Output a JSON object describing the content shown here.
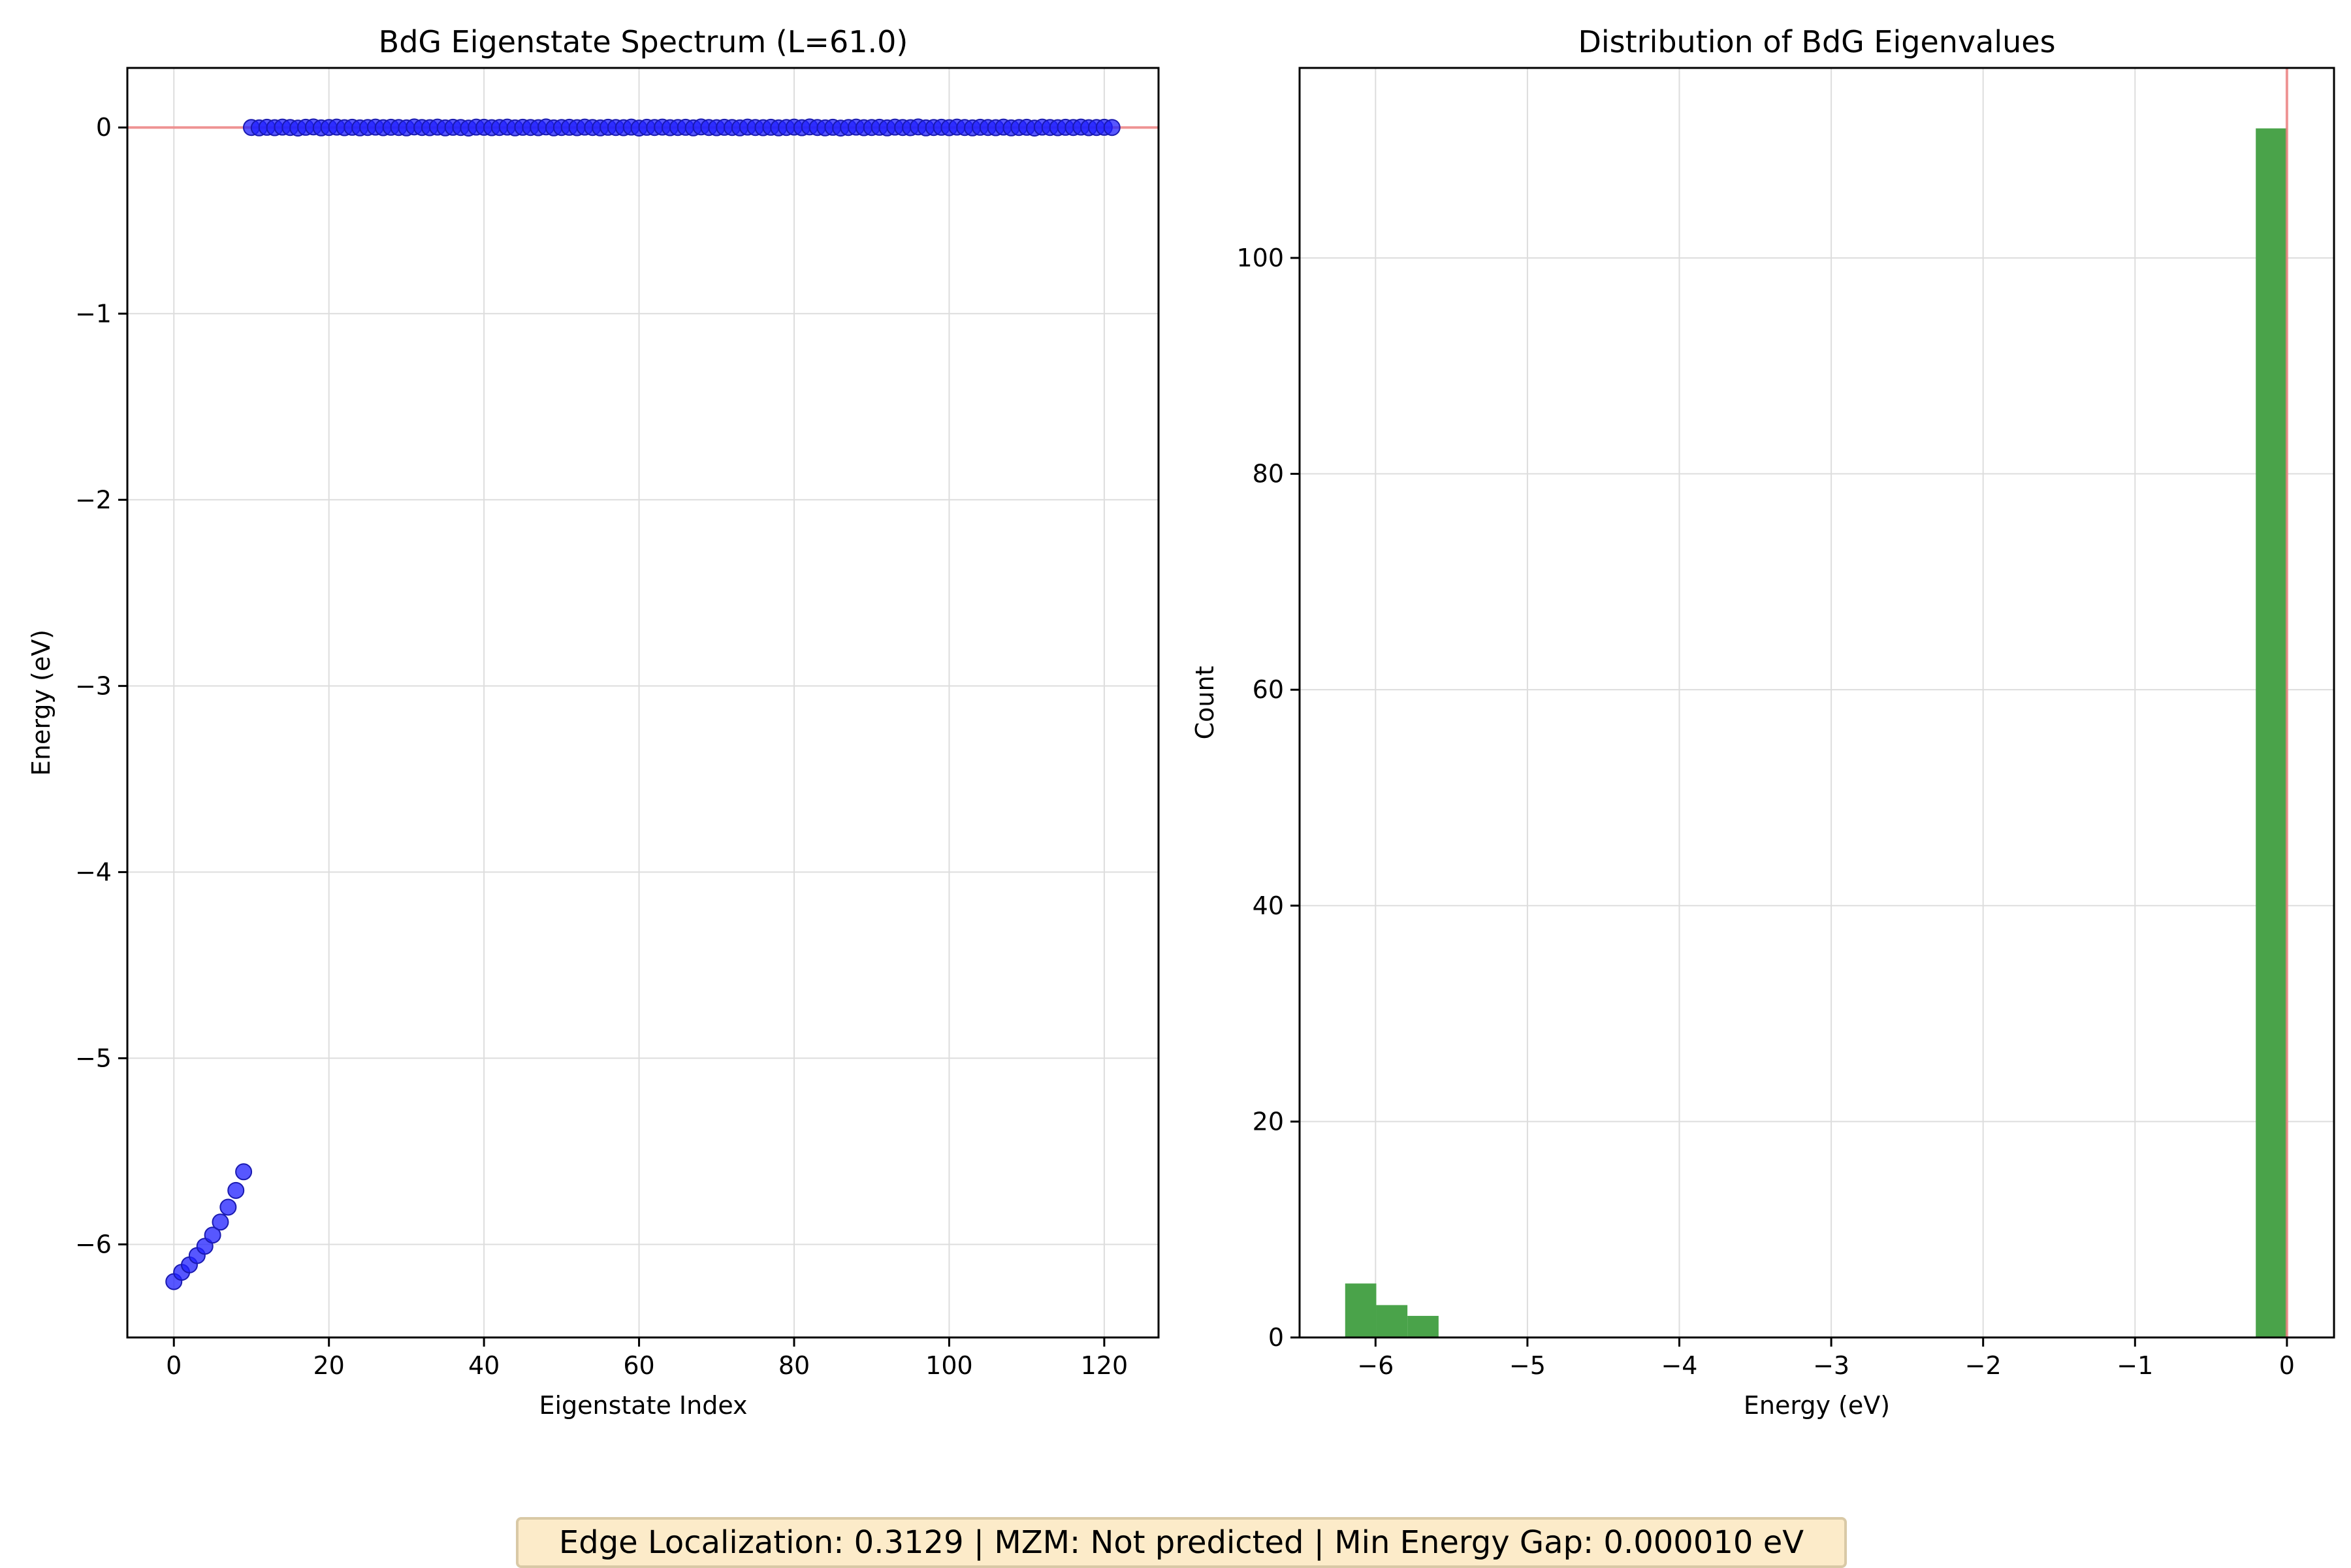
{
  "footer": {
    "text": "Edge Localization: 0.3129 | MZM: Not predicted | Min Energy Gap: 0.000010 eV"
  },
  "colors": {
    "scatter": "#1f1fff",
    "scatter_edge": "#1a1ab0",
    "bars": "#4aa34a",
    "reference_line": "#f08080",
    "grid": "#dddddd",
    "footer_bg": "#fcebc9"
  },
  "chart_data": [
    {
      "type": "scatter",
      "title": "BdG Eigenstate Spectrum (L=61.0)",
      "xlabel": "Eigenstate Index",
      "ylabel": "Energy (eV)",
      "xlim": [
        -6,
        127
      ],
      "ylim": [
        -6.5,
        0.32
      ],
      "xticks": [
        0,
        20,
        40,
        60,
        80,
        100,
        120
      ],
      "xtick_labels": [
        "0",
        "20",
        "40",
        "60",
        "80",
        "100",
        "120"
      ],
      "yticks": [
        0,
        -1,
        -2,
        -3,
        -4,
        -5,
        -6
      ],
      "ytick_labels": [
        "0",
        "−1",
        "−2",
        "−3",
        "−4",
        "−5",
        "−6"
      ],
      "grid": true,
      "reference_line": {
        "orientation": "horizontal",
        "value": 0
      },
      "low_energy_states": {
        "x": [
          0,
          1,
          2,
          3,
          4,
          5,
          6,
          7,
          8,
          9
        ],
        "y": [
          -6.2,
          -6.15,
          -6.11,
          -6.06,
          -6.01,
          -5.95,
          -5.88,
          -5.8,
          -5.71,
          -5.61
        ]
      },
      "near_zero_states": {
        "x_start": 10,
        "x_end": 121,
        "y": [
          0.0,
          -0.002,
          0.001,
          -0.001,
          0.002,
          0.0,
          -0.003,
          0.001,
          0.003,
          -0.002,
          0.0,
          0.002,
          -0.001,
          0.001,
          -0.002,
          0.0,
          0.002,
          -0.001,
          0.001,
          0.0,
          -0.002,
          0.003,
          0.0,
          -0.001,
          0.002,
          -0.002,
          0.001,
          0.0,
          -0.003,
          0.002,
          0.001,
          -0.001,
          0.0,
          0.002,
          -0.002,
          0.001,
          0.0,
          -0.001,
          0.003,
          -0.002,
          0.0,
          0.001,
          -0.001,
          0.002,
          0.0,
          -0.002,
          0.001,
          0.0,
          -0.001,
          0.002,
          -0.003,
          0.001,
          0.0,
          0.002,
          -0.001,
          0.0,
          0.001,
          -0.002,
          0.003,
          0.0,
          -0.001,
          0.001,
          0.0,
          -0.002,
          0.002,
          0.0,
          -0.001,
          0.001,
          -0.002,
          0.0,
          0.002,
          -0.001,
          0.003,
          0.0,
          -0.002,
          0.001,
          -0.003,
          0.0,
          0.002,
          -0.001,
          0.0,
          0.001,
          -0.002,
          0.002,
          0.0,
          -0.001,
          0.003,
          -0.002,
          0.0,
          0.001,
          -0.001,
          0.002,
          0.0,
          -0.002,
          0.001,
          0.0,
          -0.001,
          0.002,
          -0.002,
          0.0,
          0.001,
          -0.003,
          0.002,
          0.0,
          -0.001,
          0.001,
          0.0,
          0.002,
          -0.001,
          0.0,
          0.001,
          0.0
        ]
      }
    },
    {
      "type": "bar",
      "title": "Distribution of BdG Eigenvalues",
      "xlabel": "Energy (eV)",
      "ylabel": "Count",
      "xlim": [
        -6.5,
        0.31
      ],
      "ylim": [
        0,
        117.6
      ],
      "xticks": [
        -6,
        -5,
        -4,
        -3,
        -2,
        -1,
        0
      ],
      "xtick_labels": [
        "−6",
        "−5",
        "−4",
        "−3",
        "−2",
        "−1",
        "0"
      ],
      "yticks": [
        0,
        20,
        40,
        60,
        80,
        100
      ],
      "ytick_labels": [
        "0",
        "20",
        "40",
        "60",
        "80",
        "100"
      ],
      "grid": true,
      "reference_line": {
        "orientation": "vertical",
        "value": 0
      },
      "bins": [
        {
          "x0": -6.2,
          "x1": -5.995,
          "count": 5
        },
        {
          "x0": -5.995,
          "x1": -5.79,
          "count": 3
        },
        {
          "x0": -5.79,
          "x1": -5.585,
          "count": 2
        },
        {
          "x0": -0.205,
          "x1": 0.0,
          "count": 112
        }
      ]
    }
  ]
}
